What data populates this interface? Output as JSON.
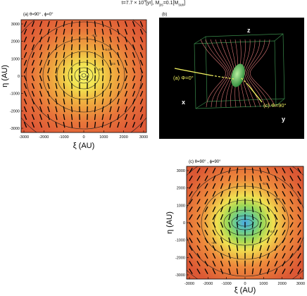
{
  "header": {
    "t_prefix": "t=7.7 × 10",
    "t_exp": "4",
    "t_suffix": "[yr], M",
    "m_sub": "ps",
    "m_suffix": "=0.1[M",
    "sun_sub": "sun",
    "end": "]"
  },
  "panel_a": {
    "label": "(a) θ=90° , ϕ=0°",
    "xlabel": "ξ (AU)",
    "ylabel": "η (AU)",
    "x_ticks": [
      "-3000",
      "-2000",
      "-1000",
      "0",
      "1000",
      "2000",
      "3000"
    ],
    "y_ticks": [
      "3000",
      "2000",
      "1000",
      "0",
      "-1000",
      "-2000",
      "-3000"
    ],
    "contour_labels": [
      "-5.5",
      "-5.0",
      "-4.5",
      "-4.0"
    ]
  },
  "panel_b": {
    "label": "(b)",
    "axis_z": "z",
    "axis_x": "x",
    "axis_y": "y",
    "view_a": "(a) Φ=0°",
    "view_c": "(c) Φ=90°"
  },
  "panel_c": {
    "label": "(c) θ=90° , ϕ=90°",
    "xlabel": "ξ (AU)",
    "ylabel": "η (AU)",
    "x_ticks": [
      "-3000",
      "-2000",
      "-1000",
      "0",
      "1000",
      "2000",
      "3000"
    ],
    "y_ticks": [
      "3000",
      "2000",
      "1000",
      "0",
      "-1000",
      "-2000",
      "-3000"
    ],
    "contour_labels": [
      "-5.5",
      "-5.0",
      "-4.5",
      "-4.0"
    ]
  },
  "colors": {
    "outer": "#e0603a",
    "mid": "#f4b040",
    "inner": "#f0ec50",
    "core_green": "#7ad46a",
    "core_blue": "#4aa8e8",
    "box_bg": "#000000",
    "field_line": "#e07070"
  }
}
